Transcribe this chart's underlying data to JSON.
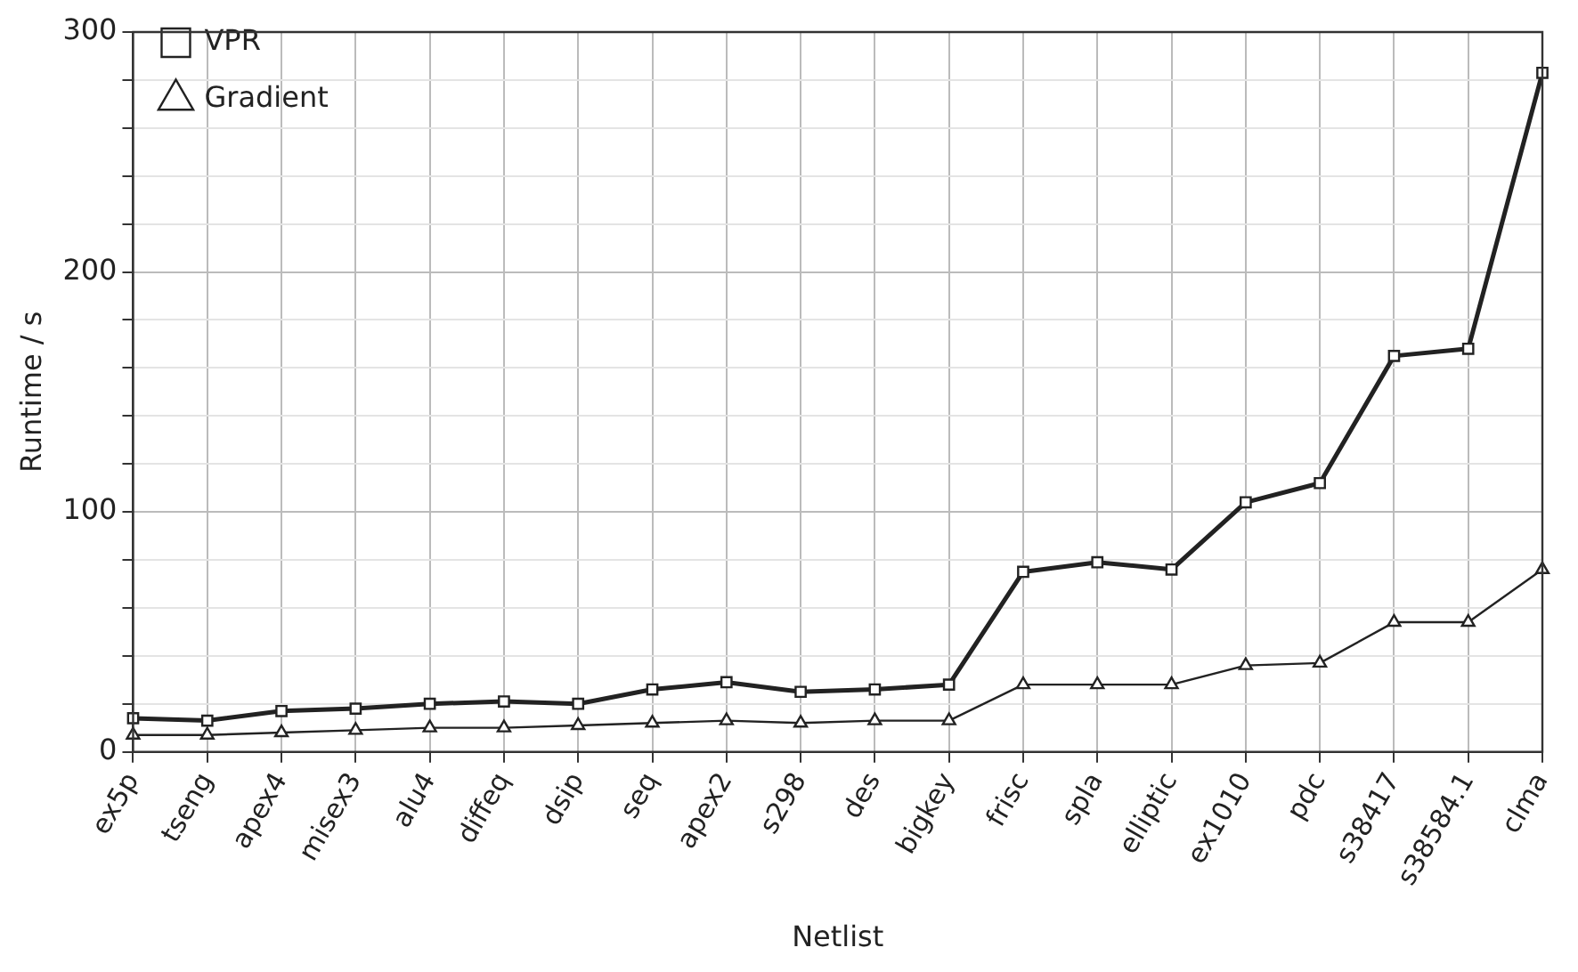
{
  "chart_data": {
    "type": "line",
    "xlabel": "Netlist",
    "ylabel": "Runtime / s",
    "categories": [
      "ex5p",
      "tseng",
      "apex4",
      "misex3",
      "alu4",
      "diffeq",
      "dsip",
      "seq",
      "apex2",
      "s298",
      "des",
      "bigkey",
      "frisc",
      "spla",
      "elliptic",
      "ex1010",
      "pdc",
      "s38417",
      "s38584.1",
      "clma"
    ],
    "series": [
      {
        "name": "VPR",
        "color": "#222222",
        "marker": "square",
        "values": [
          14,
          13,
          17,
          18,
          20,
          21,
          20,
          26,
          29,
          25,
          26,
          28,
          75,
          79,
          76,
          104,
          112,
          165,
          168,
          283
        ]
      },
      {
        "name": "Gradient",
        "color": "#222222",
        "marker": "triangle",
        "values": [
          7,
          7,
          8,
          9,
          10,
          10,
          11,
          12,
          13,
          12,
          13,
          13,
          28,
          28,
          28,
          36,
          37,
          54,
          54,
          76
        ]
      }
    ],
    "ylim": [
      0,
      300
    ],
    "yticks": [
      0,
      {
        "value": 20,
        "label": null
      },
      {
        "value": 40,
        "label": null
      },
      {
        "value": 60,
        "label": null
      },
      {
        "value": 80,
        "label": null
      },
      100,
      {
        "value": 120,
        "label": null
      },
      {
        "value": 140,
        "label": null
      },
      {
        "value": 160,
        "label": null
      },
      {
        "value": 180,
        "label": null
      },
      200,
      {
        "value": 220,
        "label": null
      },
      {
        "value": 240,
        "label": null
      },
      {
        "value": 260,
        "label": null
      },
      {
        "value": 280,
        "label": null
      },
      300
    ],
    "grid": true,
    "legend": "top left",
    "line_style": "solid"
  }
}
